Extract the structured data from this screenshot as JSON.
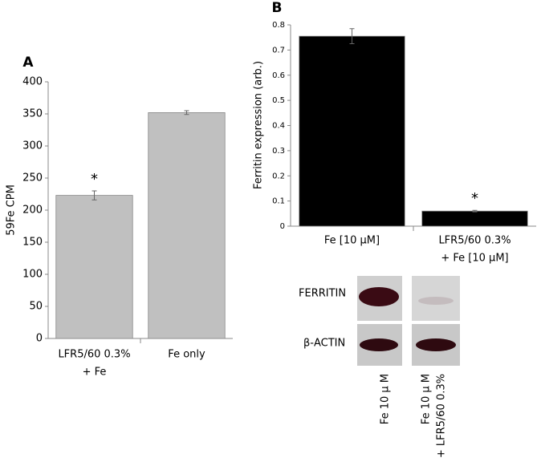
{
  "chart_data": [
    {
      "type": "bar",
      "panel_label": "A",
      "y_label": "59Fe CPM",
      "categories": [
        [
          "LFR5/60 0.3%",
          "+ Fe"
        ],
        [
          "Fe only"
        ]
      ],
      "series": [
        {
          "color": "#c0c0c0",
          "values": [
            223,
            352
          ],
          "errors": [
            7,
            3
          ]
        }
      ],
      "annotations": [
        "*"
      ],
      "ylim": [
        0,
        400
      ],
      "yticks": [
        0,
        50,
        100,
        150,
        200,
        250,
        300,
        350,
        400
      ]
    },
    {
      "type": "bar",
      "panel_label": "B",
      "y_label": "Ferritin expression (arb.)",
      "categories": [
        [
          "Fe [10 μM]"
        ],
        [
          "LFR5/60 0.3%",
          "+ Fe [10 μM]"
        ]
      ],
      "series": [
        {
          "color": "#000000",
          "values": [
            0.755,
            0.06
          ],
          "errors": [
            0.03,
            0.003
          ]
        }
      ],
      "annotations": [
        "*"
      ],
      "ylim": [
        0,
        0.8
      ],
      "yticks": [
        0,
        0.1,
        0.2,
        0.3,
        0.4,
        0.5,
        0.6,
        0.7,
        0.8
      ]
    }
  ],
  "blot": {
    "rows": [
      "FERRITIN",
      "β-ACTIN"
    ],
    "columns": [
      [
        "Fe 10 μ M"
      ],
      [
        "Fe 10 μ M",
        "+ LFR5/60 0.3%"
      ]
    ]
  }
}
